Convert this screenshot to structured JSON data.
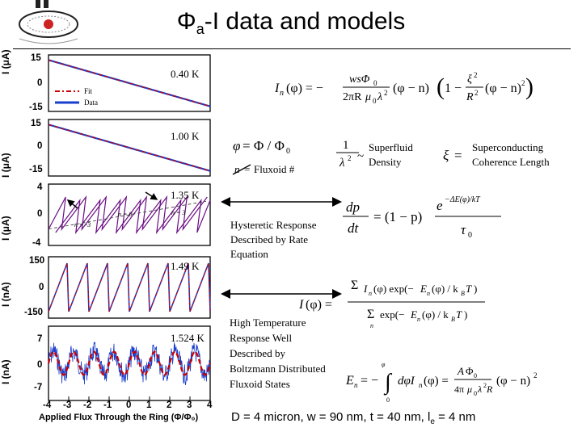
{
  "title": {
    "phi": "Φ",
    "sub": "a",
    "rest": "-I data and models"
  },
  "legend": {
    "fit": "Fit",
    "data": "Data"
  },
  "temperatures": [
    "0.40 K",
    "1.00 K",
    "1.35 K",
    "1.49 K",
    "1.524 K"
  ],
  "panels": [
    {
      "ylabel": "I (μA)",
      "ticks": [
        "15",
        "0",
        "-15"
      ]
    },
    {
      "ylabel": "I (μA)",
      "ticks": [
        "15",
        "0",
        "-15"
      ]
    },
    {
      "ylabel": "I (μA)",
      "ticks": [
        "4",
        "0",
        "-4"
      ],
      "n_labels": [
        "n = 0",
        "n = 3",
        "n = -3"
      ]
    },
    {
      "ylabel": "I (nA)",
      "ticks": [
        "150",
        "0",
        "-150"
      ]
    },
    {
      "ylabel": "I (nA)",
      "ticks": [
        "7",
        "0",
        "-7"
      ]
    }
  ],
  "xaxis": {
    "ticks": [
      "-4",
      "-3",
      "-2",
      "-1",
      "0",
      "1",
      "2",
      "3",
      "4"
    ],
    "label": "Applied Flux Through the Ring (Φ/Φ₀)"
  },
  "annotations": {
    "fluxoid": "Fluxoid #",
    "superfluid": [
      "Superfluid",
      "Density"
    ],
    "coherence": [
      "Superconducting",
      "Coherence Length"
    ],
    "hysteretic": [
      "Hysteretic Response",
      "Described by Rate",
      "Equation"
    ],
    "high_temp": [
      "High Temperature",
      "Response Well",
      "Described by",
      "Boltzmann Distributed",
      "Fluxoid States"
    ]
  },
  "footer": "D = 4 micron, w = 90 nm, t = 40 nm, l",
  "footer_sub": "e",
  "footer_end": " = 4 nm",
  "colors": {
    "fit": "#cc0000",
    "data": "#1a3fcc",
    "hyst": "#6a0d83"
  }
}
